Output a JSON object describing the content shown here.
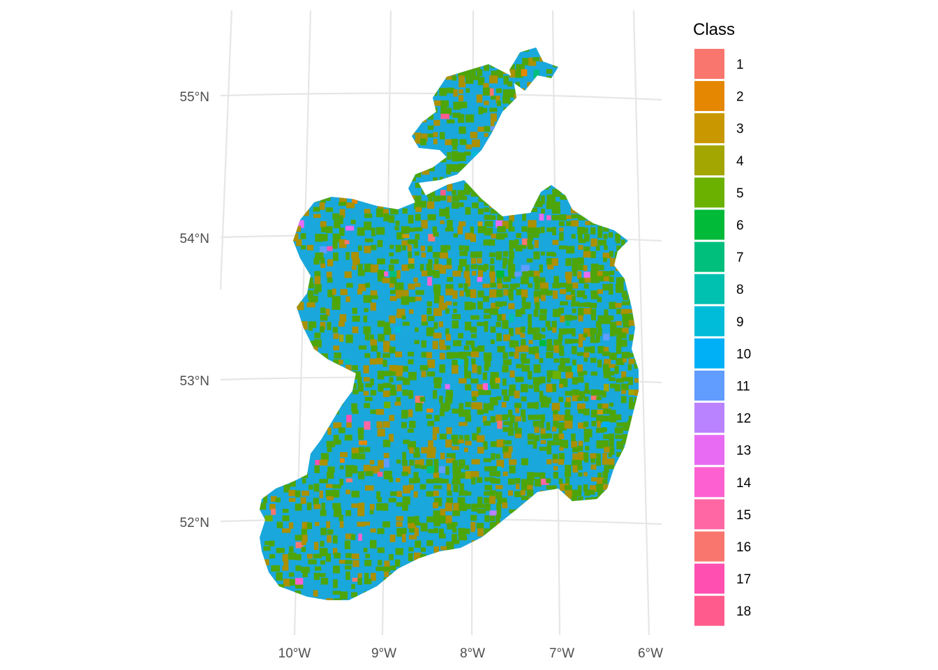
{
  "map": {
    "lat_labels": [
      "55°N",
      "54°N",
      "53°N",
      "52°N"
    ],
    "lon_labels": [
      "10°W",
      "9°W",
      "8°W",
      "7°W",
      "6°W"
    ],
    "class_colors": {
      "dominant": "#1AA7DC",
      "secondary": "#4DA50A",
      "tertiary": "#AB9000"
    }
  },
  "legend": {
    "title": "Class",
    "items": [
      {
        "label": "1",
        "color": "#F8766D"
      },
      {
        "label": "2",
        "color": "#E58700"
      },
      {
        "label": "3",
        "color": "#C99800"
      },
      {
        "label": "4",
        "color": "#A3A500"
      },
      {
        "label": "5",
        "color": "#6BB100"
      },
      {
        "label": "6",
        "color": "#00BA38"
      },
      {
        "label": "7",
        "color": "#00BF7D"
      },
      {
        "label": "8",
        "color": "#00C0AF"
      },
      {
        "label": "9",
        "color": "#00BCD8"
      },
      {
        "label": "10",
        "color": "#00B0F6"
      },
      {
        "label": "11",
        "color": "#619CFF"
      },
      {
        "label": "12",
        "color": "#B983FF"
      },
      {
        "label": "13",
        "color": "#E76BF3"
      },
      {
        "label": "14",
        "color": "#FD61D1"
      },
      {
        "label": "15",
        "color": "#FF67A4"
      },
      {
        "label": "16",
        "color": "#F8766D"
      },
      {
        "label": "17",
        "color": "#FF4FB0"
      },
      {
        "label": "18",
        "color": "#FF5C8D"
      }
    ]
  }
}
